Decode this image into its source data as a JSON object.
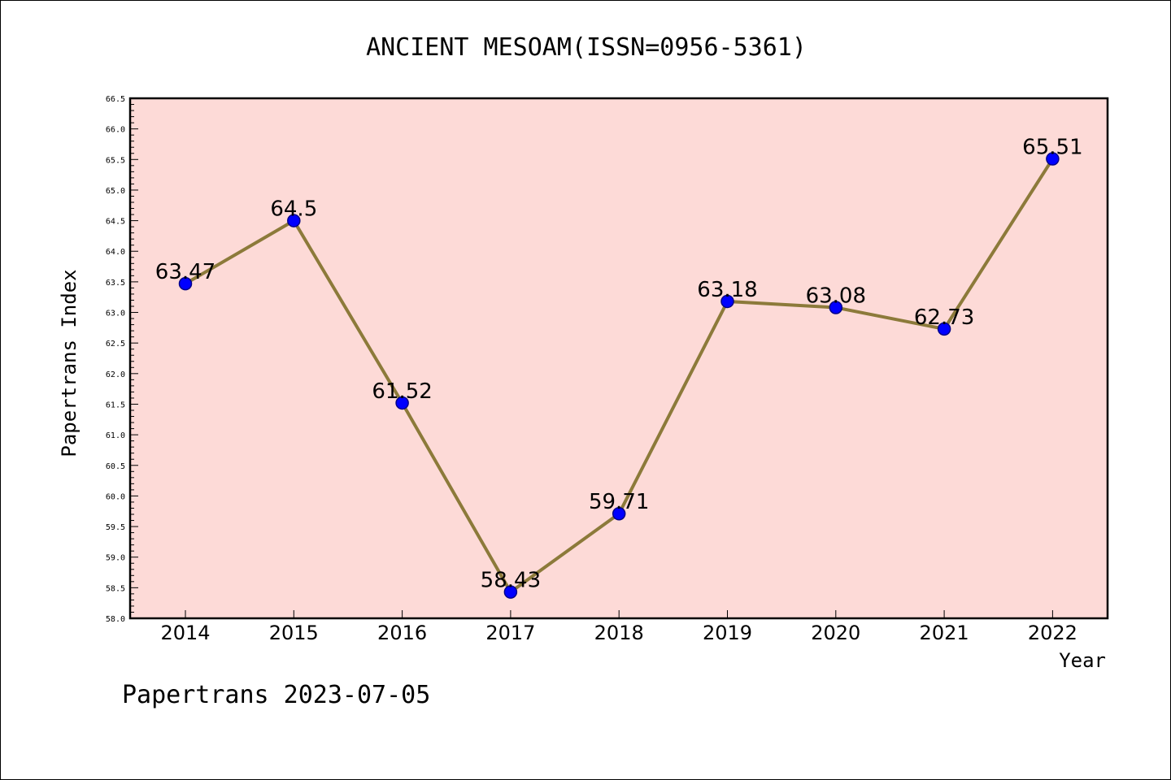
{
  "chart_data": {
    "type": "line",
    "title": "ANCIENT MESOAM(ISSN=0956-5361)",
    "xlabel": "Year",
    "ylabel": "Papertrans Index",
    "categories": [
      "2014",
      "2015",
      "2016",
      "2017",
      "2018",
      "2019",
      "2020",
      "2021",
      "2022"
    ],
    "values": [
      63.47,
      64.5,
      61.52,
      58.43,
      59.71,
      63.18,
      63.08,
      62.73,
      65.51
    ],
    "data_labels": [
      "63.47",
      "64.5",
      "61.52",
      "58.43",
      "59.71",
      "63.18",
      "63.08",
      "62.73",
      "65.51"
    ],
    "ylim": [
      58.0,
      66.5
    ],
    "ytick_step": 0.5,
    "yticks": [
      "58.0",
      "58.5",
      "59.0",
      "59.5",
      "60.0",
      "60.5",
      "61.0",
      "61.5",
      "62.0",
      "62.5",
      "63.0",
      "63.5",
      "64.0",
      "64.5",
      "65.0",
      "65.5",
      "66.0",
      "66.5"
    ],
    "grid": false,
    "colors": {
      "plot_background": "#fddad7",
      "line": "#8c7a3a",
      "marker_fill": "#0000ff",
      "marker_edge": "#00008b"
    }
  },
  "footer": "Papertrans 2023-07-05"
}
